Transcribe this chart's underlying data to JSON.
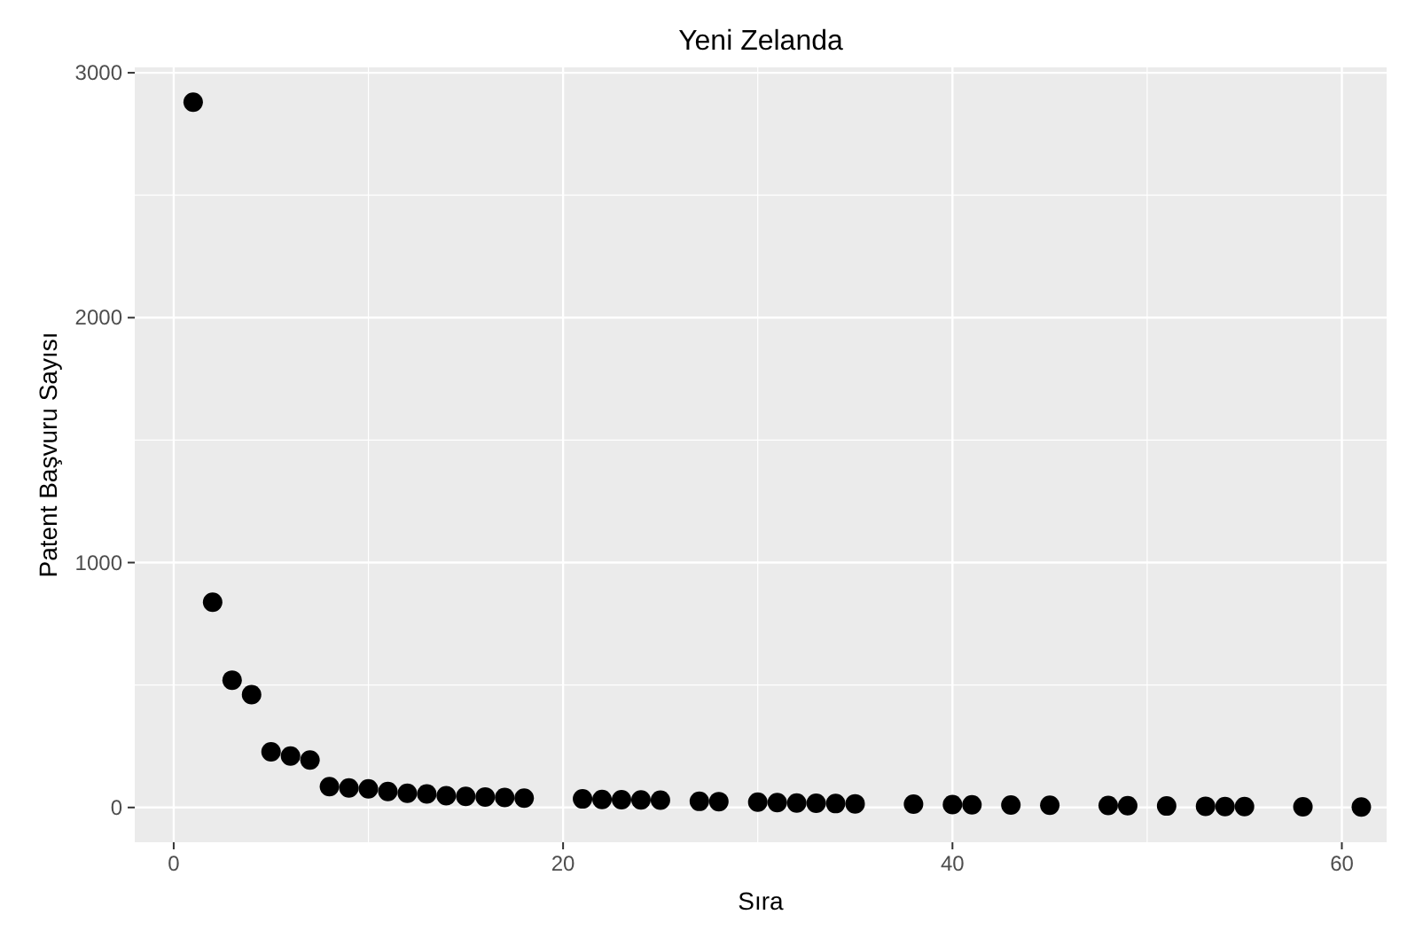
{
  "chart_data": {
    "type": "scatter",
    "title": "Yeni Zelanda",
    "xlabel": "Sıra",
    "ylabel": "Patent Başvuru Sayısı",
    "x": [
      1,
      2,
      3,
      4,
      5,
      6,
      7,
      8,
      9,
      10,
      11,
      12,
      13,
      14,
      15,
      16,
      17,
      18,
      21,
      22,
      23,
      24,
      25,
      27,
      28,
      30,
      31,
      32,
      33,
      34,
      35,
      38,
      40,
      41,
      43,
      45,
      48,
      49,
      51,
      53,
      54,
      55,
      58,
      61
    ],
    "series": [
      {
        "color": "#000000",
        "values": [
          2880,
          838,
          520,
          461,
          227,
          210,
          194,
          85,
          80,
          76,
          65,
          58,
          55,
          48,
          45,
          43,
          41,
          38,
          35,
          33,
          32,
          31,
          30,
          25,
          24,
          22,
          20,
          18,
          17,
          16,
          15,
          14,
          12,
          11,
          10,
          9,
          8,
          7,
          6,
          5,
          4,
          4,
          3,
          2
        ]
      }
    ],
    "xlim": [
      -2,
      62.3
    ],
    "ylim": [
      -142,
      3022
    ],
    "xticks": [
      0,
      20,
      40,
      60
    ],
    "yticks": [
      0,
      1000,
      2000,
      3000
    ],
    "grid": true,
    "marker": "circle"
  }
}
